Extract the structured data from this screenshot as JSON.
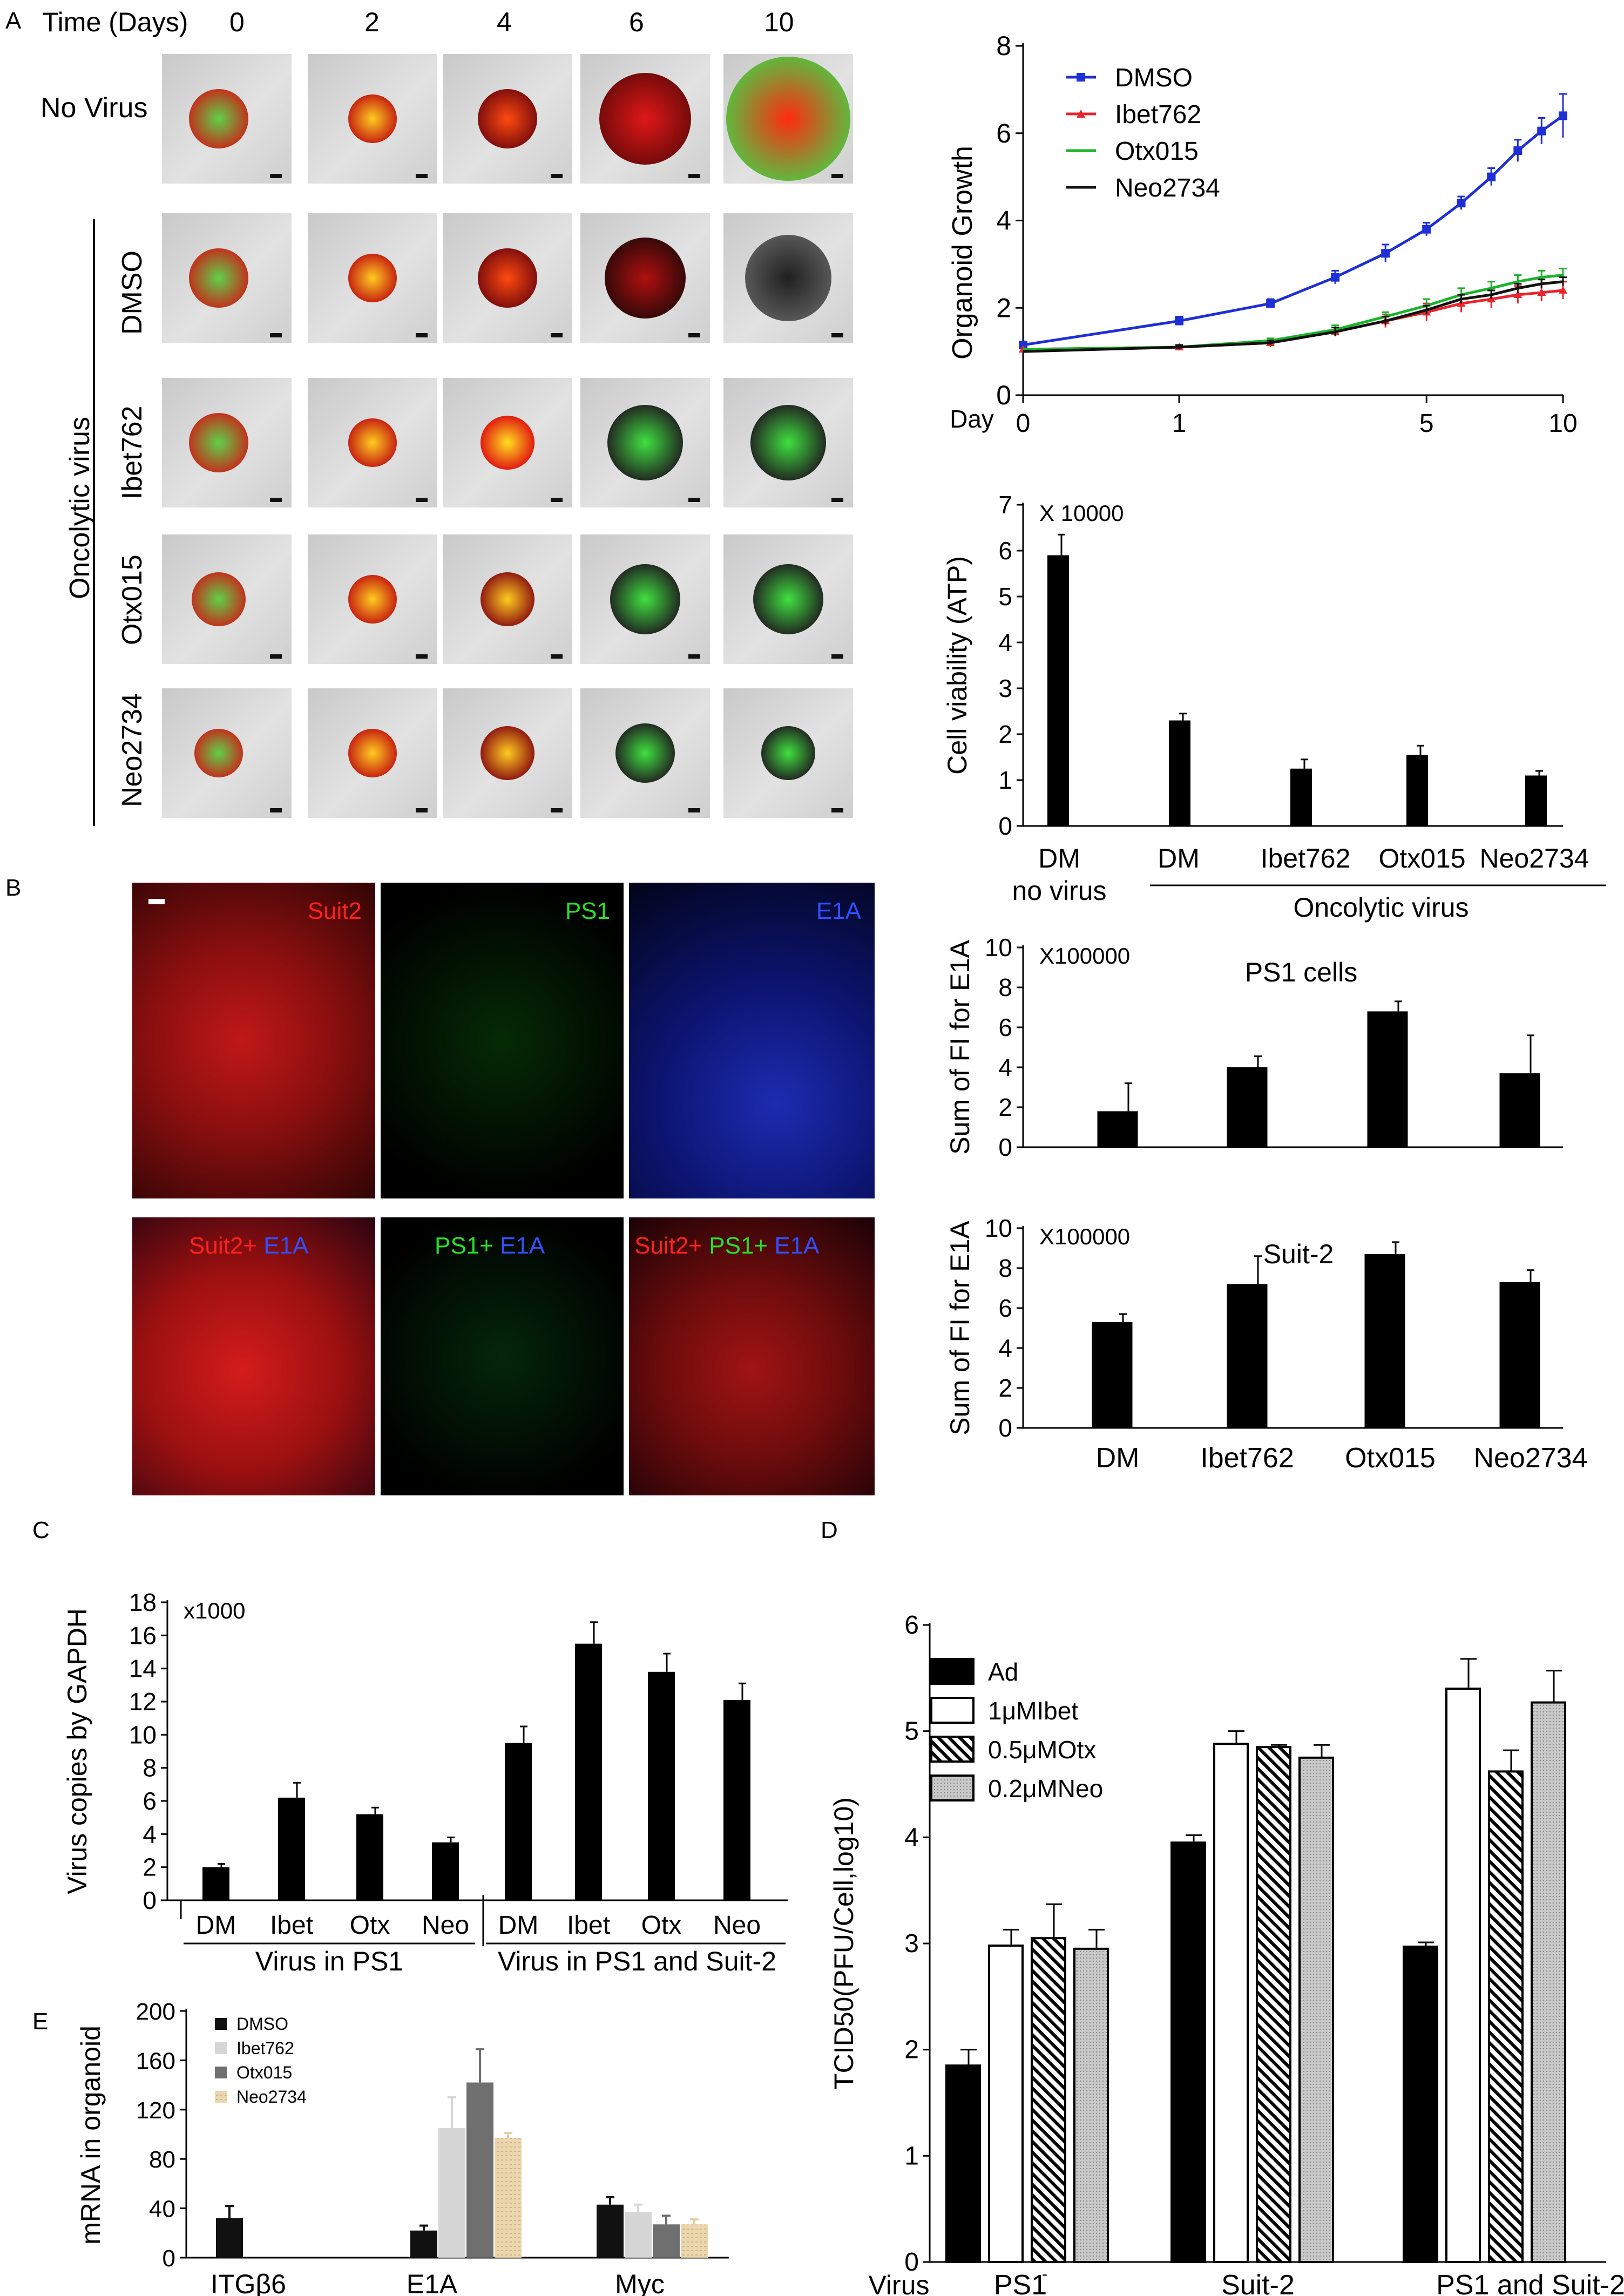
{
  "panels": {
    "A": "A",
    "B": "B",
    "C": "C",
    "D": "D",
    "E": "E"
  },
  "panelA_images": {
    "time_label": "Time (Days)",
    "days": [
      "0",
      "2",
      "4",
      "6",
      "10"
    ],
    "row_no_virus": "No Virus",
    "group_label": "Oncolytic virus",
    "rows": [
      "DMSO",
      "Ibet762",
      "Otx015",
      "Neo2734"
    ]
  },
  "panelB_images": {
    "top": [
      {
        "text": "Suit2",
        "color": "#ff2020"
      },
      {
        "text": "PS1",
        "color": "#28e028"
      },
      {
        "text": "E1A",
        "color": "#3050ff"
      }
    ],
    "bottom": [
      [
        {
          "text": "Suit2+ ",
          "color": "#ff2020"
        },
        {
          "text": "E1A",
          "color": "#3050ff"
        }
      ],
      [
        {
          "text": "PS1+ ",
          "color": "#28e028"
        },
        {
          "text": "E1A",
          "color": "#3050ff"
        }
      ],
      [
        {
          "text": "Suit2+ ",
          "color": "#ff2020"
        },
        {
          "text": "PS1+ ",
          "color": "#28e028"
        },
        {
          "text": "E1A",
          "color": "#3050ff"
        }
      ]
    ]
  },
  "chart_data": [
    {
      "id": "growth",
      "type": "line",
      "ylabel": "Organoid Growth",
      "xlabel": "Day",
      "x_axis_scale": "log(day+1)",
      "x_tick_labels": [
        "0",
        "1",
        "5",
        "10"
      ],
      "ylim": [
        0,
        8
      ],
      "y_ticks": [
        "0",
        "2",
        "4",
        "6",
        "8"
      ],
      "legend_position": "top-left",
      "series": [
        {
          "name": "DMSO",
          "color": "#1f2fd6",
          "marker": "square",
          "x": [
            0,
            1,
            2,
            3,
            4,
            5,
            6,
            7,
            8,
            9,
            10
          ],
          "y": [
            1.15,
            1.7,
            2.1,
            2.7,
            3.25,
            3.8,
            4.4,
            5.0,
            5.6,
            6.05,
            6.4
          ],
          "err": [
            0.05,
            0.1,
            0.1,
            0.15,
            0.2,
            0.15,
            0.15,
            0.2,
            0.25,
            0.3,
            0.5
          ]
        },
        {
          "name": "Ibet762",
          "color": "#e8242c",
          "marker": "triangle",
          "x": [
            0,
            1,
            2,
            3,
            4,
            5,
            6,
            7,
            8,
            9,
            10
          ],
          "y": [
            1.05,
            1.1,
            1.2,
            1.45,
            1.7,
            1.9,
            2.1,
            2.2,
            2.3,
            2.35,
            2.4
          ],
          "err": [
            0.05,
            0.05,
            0.1,
            0.1,
            0.15,
            0.2,
            0.2,
            0.2,
            0.2,
            0.2,
            0.2
          ]
        },
        {
          "name": "Otx015",
          "color": "#1bb32a",
          "marker": "none",
          "x": [
            0,
            1,
            2,
            3,
            4,
            5,
            6,
            7,
            8,
            9,
            10
          ],
          "y": [
            1.05,
            1.1,
            1.25,
            1.5,
            1.8,
            2.05,
            2.3,
            2.45,
            2.6,
            2.7,
            2.75
          ],
          "err": [
            0.05,
            0.05,
            0.05,
            0.1,
            0.1,
            0.15,
            0.15,
            0.15,
            0.15,
            0.15,
            0.15
          ]
        },
        {
          "name": "Neo2734",
          "color": "#111111",
          "marker": "none",
          "x": [
            0,
            1,
            2,
            3,
            4,
            5,
            6,
            7,
            8,
            9,
            10
          ],
          "y": [
            1.0,
            1.1,
            1.2,
            1.45,
            1.7,
            1.95,
            2.2,
            2.3,
            2.45,
            2.55,
            2.6
          ],
          "err": [
            0.05,
            0.05,
            0.05,
            0.1,
            0.1,
            0.1,
            0.1,
            0.1,
            0.1,
            0.1,
            0.1
          ]
        }
      ]
    },
    {
      "id": "atp",
      "type": "bar",
      "ylabel": "Cell viability (ATP)",
      "multiplier": "X 10000",
      "ylim": [
        0,
        7
      ],
      "y_ticks": [
        "0",
        "1",
        "2",
        "3",
        "4",
        "5",
        "6",
        "7"
      ],
      "categories": [
        "DM",
        "DM",
        "Ibet762",
        "Otx015",
        "Neo2734"
      ],
      "sub_label": "no virus",
      "group_label": "Oncolytic virus",
      "values": [
        5.9,
        2.3,
        1.25,
        1.55,
        1.1
      ],
      "errors": [
        0.45,
        0.15,
        0.2,
        0.2,
        0.1
      ]
    },
    {
      "id": "ps1",
      "type": "bar",
      "title": "PS1 cells",
      "ylabel": "Sum of FI for E1A",
      "multiplier": "X100000",
      "ylim": [
        0,
        10
      ],
      "y_ticks": [
        "0",
        "2",
        "4",
        "6",
        "8",
        "10"
      ],
      "values": [
        1.8,
        4.0,
        6.8,
        3.7
      ],
      "errors": [
        1.4,
        0.55,
        0.5,
        1.9
      ]
    },
    {
      "id": "suit2",
      "type": "bar",
      "title": "Suit-2",
      "ylabel": "Sum of FI for E1A",
      "multiplier": "X100000",
      "ylim": [
        0,
        10
      ],
      "y_ticks": [
        "0",
        "2",
        "4",
        "6",
        "8",
        "10"
      ],
      "categories": [
        "DM",
        "Ibet762",
        "Otx015",
        "Neo2734"
      ],
      "values": [
        5.3,
        7.2,
        8.7,
        7.3
      ],
      "errors": [
        0.4,
        1.4,
        0.6,
        0.6
      ]
    },
    {
      "id": "virus_copies",
      "type": "bar",
      "ylabel": "Virus copies by GAPDH",
      "multiplier": "x1000",
      "ylim": [
        0,
        18
      ],
      "y_ticks": [
        "0",
        "2",
        "4",
        "6",
        "8",
        "10",
        "12",
        "14",
        "16",
        "18"
      ],
      "categories": [
        "DM",
        "Ibet",
        "Otx",
        "Neo",
        "DM",
        "Ibet",
        "Otx",
        "Neo"
      ],
      "group_labels": [
        "Virus in PS1",
        "Virus in PS1 and Suit-2"
      ],
      "values": [
        2.0,
        6.2,
        5.2,
        3.5,
        9.5,
        15.5,
        13.8,
        12.1
      ],
      "errors": [
        0.2,
        0.9,
        0.4,
        0.3,
        1.0,
        1.3,
        1.1,
        1.0
      ]
    },
    {
      "id": "tcid50",
      "type": "bar",
      "ylabel": "TCID50(PFU/Cell,log10)",
      "ylim": [
        0,
        6
      ],
      "y_ticks": [
        "0",
        "1",
        "2",
        "3",
        "4",
        "5",
        "6"
      ],
      "x_axis_label": "Virus",
      "group_labels": [
        "PS1",
        "Suit-2",
        "PS1 and  Suit-2"
      ],
      "ps1_superscript": "-",
      "series": [
        {
          "name": "Ad",
          "style": "solid",
          "values": [
            1.85,
            3.95,
            2.97
          ],
          "errors": [
            0.15,
            0.07,
            0.04
          ]
        },
        {
          "name": "1μMIbet",
          "style": "open",
          "values": [
            2.98,
            4.88,
            5.4
          ],
          "errors": [
            0.15,
            0.12,
            0.28
          ]
        },
        {
          "name": "0.5μMOtx",
          "style": "hatched",
          "values": [
            3.05,
            4.85,
            4.62
          ],
          "errors": [
            0.32,
            0.02,
            0.2
          ]
        },
        {
          "name": "0.2μMNeo",
          "style": "dotted",
          "values": [
            2.95,
            4.75,
            5.27
          ],
          "errors": [
            0.18,
            0.12,
            0.3
          ]
        }
      ]
    },
    {
      "id": "mrna",
      "type": "bar",
      "ylabel": "mRNA in organoid",
      "ylim": [
        0,
        200
      ],
      "y_ticks": [
        "0",
        "40",
        "80",
        "120",
        "160",
        "200"
      ],
      "categories": [
        "ITGβ6",
        "E1A",
        "Myc"
      ],
      "series": [
        {
          "name": "DMSO",
          "color": "#111111",
          "values": [
            32,
            22,
            43
          ],
          "errors": [
            10,
            4,
            6
          ]
        },
        {
          "name": "Ibet762",
          "color": "#d6d6d6",
          "values": [
            0,
            105,
            37
          ],
          "errors": [
            0,
            25,
            6
          ]
        },
        {
          "name": "Otx015",
          "color": "#6f6f6f",
          "values": [
            0,
            142,
            27
          ],
          "errors": [
            0,
            27,
            7
          ]
        },
        {
          "name": "Neo2734",
          "color": "#e3cfa5",
          "values": [
            0,
            97,
            27
          ],
          "errors": [
            0,
            4,
            4
          ]
        }
      ]
    }
  ]
}
